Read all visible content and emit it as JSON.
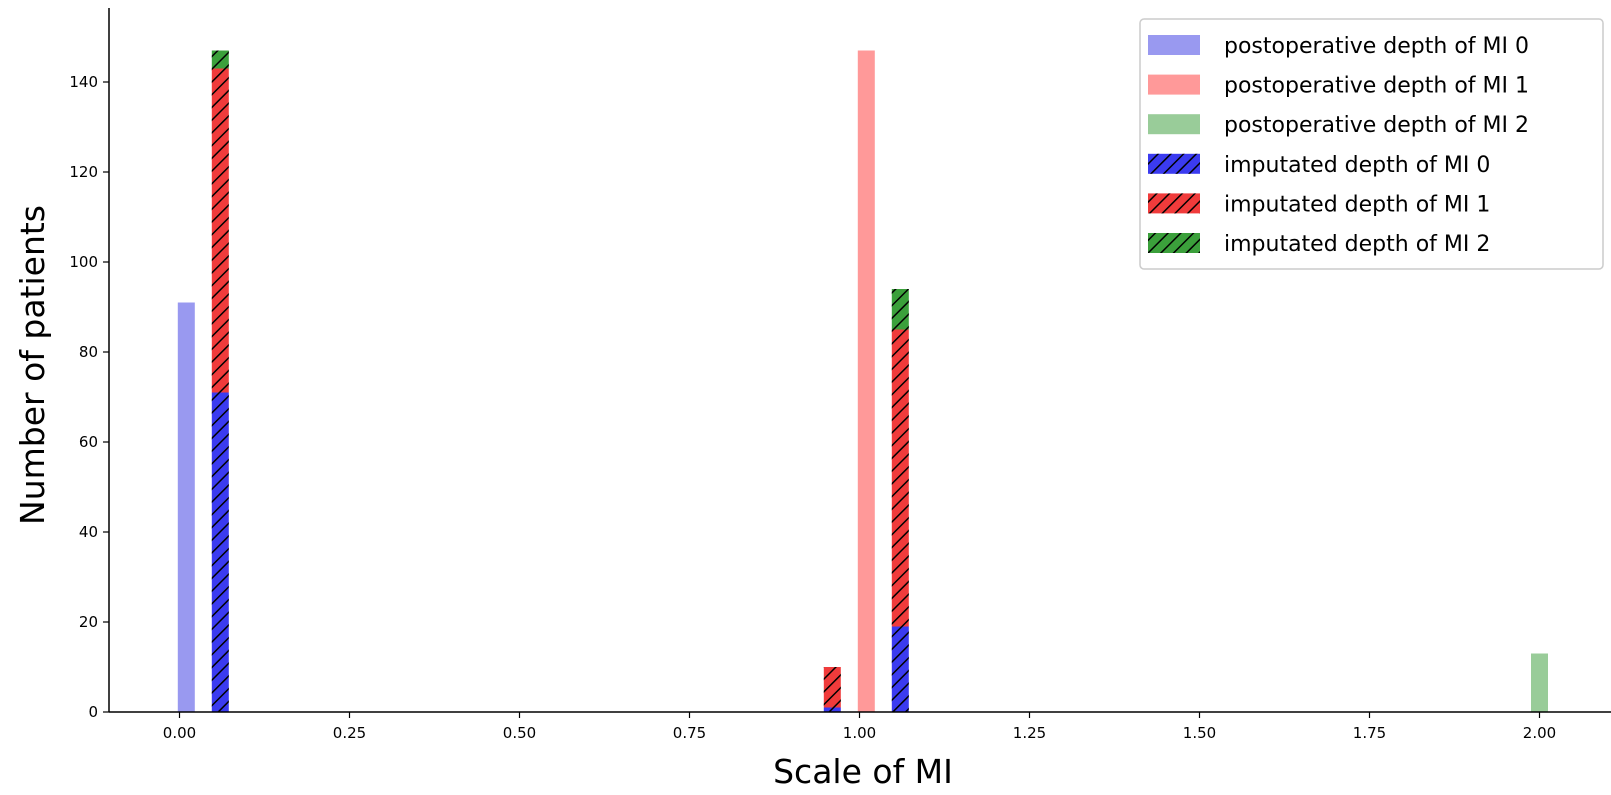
{
  "chart_data": {
    "type": "bar",
    "title": "",
    "xlabel": "Scale of MI",
    "ylabel": "Number of patients",
    "xlim": [
      -0.1,
      2.1
    ],
    "ylim": [
      0,
      147
    ],
    "x_ticks": [
      "0.00",
      "0.25",
      "0.50",
      "0.75",
      "1.00",
      "1.25",
      "1.50",
      "1.75",
      "2.00"
    ],
    "y_ticks": [
      "0",
      "20",
      "40",
      "60",
      "80",
      "100",
      "120",
      "140"
    ],
    "grid": false,
    "legend_position": "top-right",
    "series": [
      {
        "name": "postoperative depth of MI 0",
        "color": "#9999f0",
        "hatch": false,
        "bars": [
          {
            "x": 0.01,
            "bottom": 0,
            "value": 91
          }
        ]
      },
      {
        "name": "postoperative depth of MI 1",
        "color": "#ff9999",
        "hatch": false,
        "bars": [
          {
            "x": 1.01,
            "bottom": 0,
            "value": 147
          }
        ]
      },
      {
        "name": "postoperative depth of MI 2",
        "color": "#99cc99",
        "hatch": false,
        "bars": [
          {
            "x": 2.0,
            "bottom": 0,
            "value": 13
          }
        ]
      },
      {
        "name": "imputated depth of MI 0",
        "color": "#3b3bf0",
        "hatch": true,
        "bars": [
          {
            "x": 0.06,
            "bottom": 0,
            "value": 71
          },
          {
            "x": 0.96,
            "bottom": 0,
            "value": 1
          },
          {
            "x": 1.06,
            "bottom": 0,
            "value": 19
          }
        ]
      },
      {
        "name": "imputated depth of MI 1",
        "color": "#f03b3b",
        "hatch": true,
        "bars": [
          {
            "x": 0.06,
            "bottom": 71,
            "value": 72
          },
          {
            "x": 0.96,
            "bottom": 1,
            "value": 9
          },
          {
            "x": 1.06,
            "bottom": 19,
            "value": 66
          }
        ]
      },
      {
        "name": "imputated depth of MI 2",
        "color": "#3ba03b",
        "hatch": true,
        "bars": [
          {
            "x": 0.06,
            "bottom": 143,
            "value": 4
          },
          {
            "x": 1.06,
            "bottom": 85,
            "value": 9
          }
        ]
      }
    ]
  }
}
